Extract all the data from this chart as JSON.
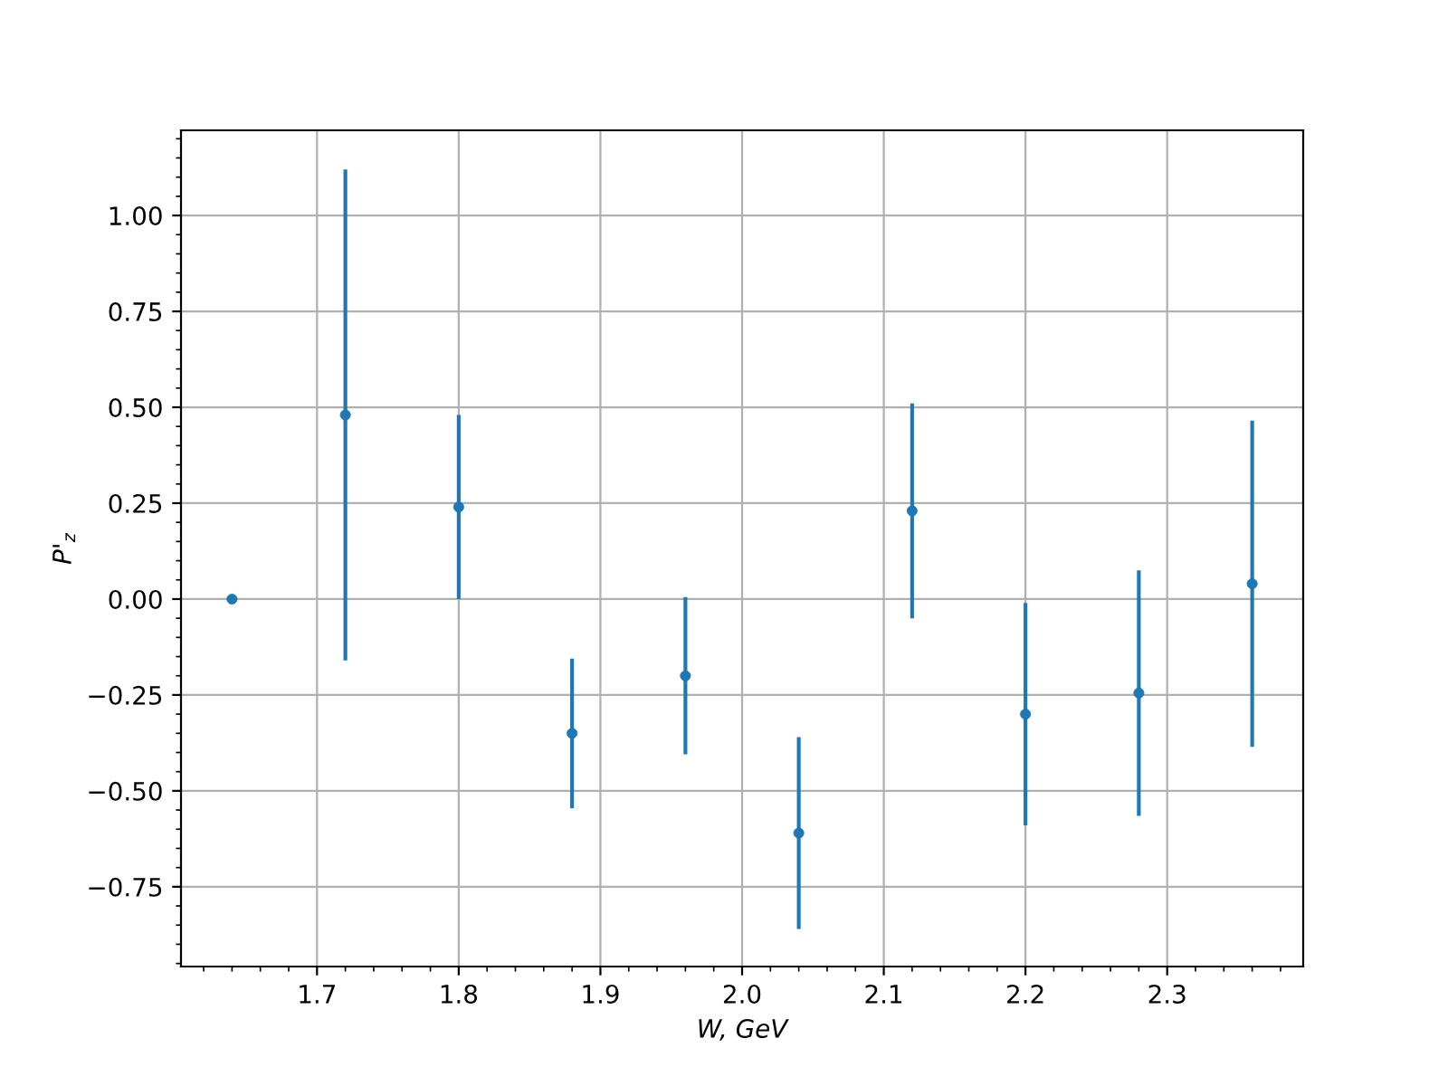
{
  "chart_data": {
    "type": "scatter",
    "xlabel": "W, GeV",
    "ylabel": "P'$_{z}$",
    "x": [
      1.64,
      1.72,
      1.8,
      1.88,
      1.96,
      2.04,
      2.12,
      2.2,
      2.28,
      2.36
    ],
    "series": [
      {
        "color": "#1f77b4",
        "values": [
          0.0,
          0.48,
          0.24,
          -0.35,
          -0.2,
          -0.61,
          0.23,
          -0.3,
          -0.245,
          0.04
        ],
        "errors": [
          null,
          0.64,
          0.24,
          0.195,
          0.205,
          0.25,
          0.28,
          0.29,
          0.32,
          0.425
        ]
      }
    ],
    "xlim": [
      1.604,
      2.396
    ],
    "ylim": [
      -0.958,
      1.222
    ],
    "xticks": [
      1.7,
      1.8,
      1.9,
      {
        "value": 2.0,
        "label": "2.0"
      },
      2.1,
      2.2,
      2.3
    ],
    "yticks": [
      {
        "value": -0.75,
        "label": "−0.75"
      },
      {
        "value": -0.5,
        "label": "−0.50"
      },
      {
        "value": -0.25,
        "label": "−0.25"
      },
      {
        "value": 0,
        "label": "0.00"
      },
      {
        "value": 0.25,
        "label": "0.25"
      },
      {
        "value": 0.5,
        "label": "0.50"
      },
      {
        "value": 0.75,
        "label": "0.75"
      },
      {
        "value": 1.0,
        "label": "1.00"
      }
    ],
    "grid": true,
    "marker": "circle"
  }
}
